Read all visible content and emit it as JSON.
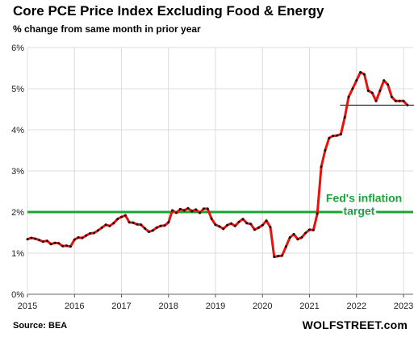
{
  "chart_data": {
    "type": "line",
    "title": "Core PCE Price Index Excluding Food & Energy",
    "subtitle": "% change from same month in prior year",
    "source": "Source: BEA",
    "brand": "WOLFSTREET.com",
    "ylim": [
      0,
      6
    ],
    "y_ticks": [
      "0%",
      "1%",
      "2%",
      "3%",
      "4%",
      "5%",
      "6%"
    ],
    "y_tick_values": [
      0,
      1,
      2,
      3,
      4,
      5,
      6
    ],
    "x_ticks": [
      "2015",
      "2016",
      "2017",
      "2018",
      "2019",
      "2020",
      "2021",
      "2022",
      "2023"
    ],
    "x_tick_values": [
      2015,
      2016,
      2017,
      2018,
      2019,
      2020,
      2021,
      2022,
      2023
    ],
    "xlim": [
      2015,
      2023.3
    ],
    "grid": true,
    "colors": {
      "series": "#e8120c",
      "marker": "#111111",
      "target": "#1aa33a",
      "reference": "#000000"
    },
    "reference_line": {
      "value": 4.6,
      "x_start": 2021.65,
      "x_end": 2023.3
    },
    "target_line": {
      "value": 2.0,
      "label_line1": "Fed's inflation",
      "label_line2": "target"
    },
    "series": [
      {
        "start": "2015-01",
        "values": [
          1.34,
          1.37,
          1.35,
          1.32,
          1.28,
          1.3,
          1.22,
          1.25,
          1.24,
          1.17,
          1.18,
          1.16,
          1.33,
          1.38,
          1.37,
          1.43,
          1.48,
          1.49,
          1.55,
          1.62,
          1.69,
          1.66,
          1.73,
          1.83,
          1.88,
          1.92,
          1.75,
          1.74,
          1.7,
          1.69,
          1.6,
          1.52,
          1.55,
          1.62,
          1.66,
          1.67,
          1.75,
          2.04,
          1.98,
          2.07,
          2.04,
          2.09,
          2.02,
          2.06,
          1.98,
          2.08,
          2.08,
          1.84,
          1.69,
          1.65,
          1.59,
          1.68,
          1.72,
          1.66,
          1.76,
          1.83,
          1.73,
          1.71,
          1.57,
          1.62,
          1.68,
          1.79,
          1.63,
          0.91,
          0.93,
          0.94,
          1.16,
          1.38,
          1.46,
          1.34,
          1.38,
          1.49,
          1.57,
          1.56,
          1.96,
          3.1,
          3.5,
          3.8,
          3.85,
          3.86,
          3.89,
          4.3,
          4.8,
          5.0,
          5.2,
          5.4,
          5.35,
          4.95,
          4.9,
          4.7,
          4.95,
          5.2,
          5.1,
          4.8,
          4.7,
          4.7,
          4.7,
          4.6
        ]
      }
    ]
  }
}
